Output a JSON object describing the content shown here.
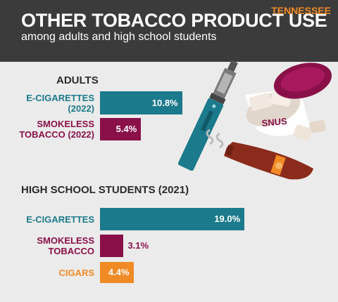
{
  "header": {
    "title": "OTHER TOBACCO PRODUCT USE",
    "subtitle": "among adults and high school students",
    "state": "TENNESSEE"
  },
  "chart_data": [
    {
      "type": "bar",
      "title": "ADULTS",
      "categories": [
        "E-CIGARETTES\n(2022)",
        "SMOKELESS\nTOBACCO (2022)"
      ],
      "values": [
        10.8,
        5.4
      ],
      "value_labels": [
        "10.8%",
        "5.4%"
      ],
      "colors": [
        "#1b7a8b",
        "#8a1049"
      ]
    },
    {
      "type": "bar",
      "title": "HIGH SCHOOL STUDENTS (2021)",
      "categories": [
        "E-CIGARETTES",
        "SMOKELESS\nTOBACCO",
        "CIGARS"
      ],
      "values": [
        19.0,
        3.1,
        4.4
      ],
      "value_labels": [
        "19.0%",
        "3.1%",
        "4.4%"
      ],
      "colors": [
        "#1b7a8b",
        "#8a1049",
        "#f08a24"
      ]
    }
  ]
}
